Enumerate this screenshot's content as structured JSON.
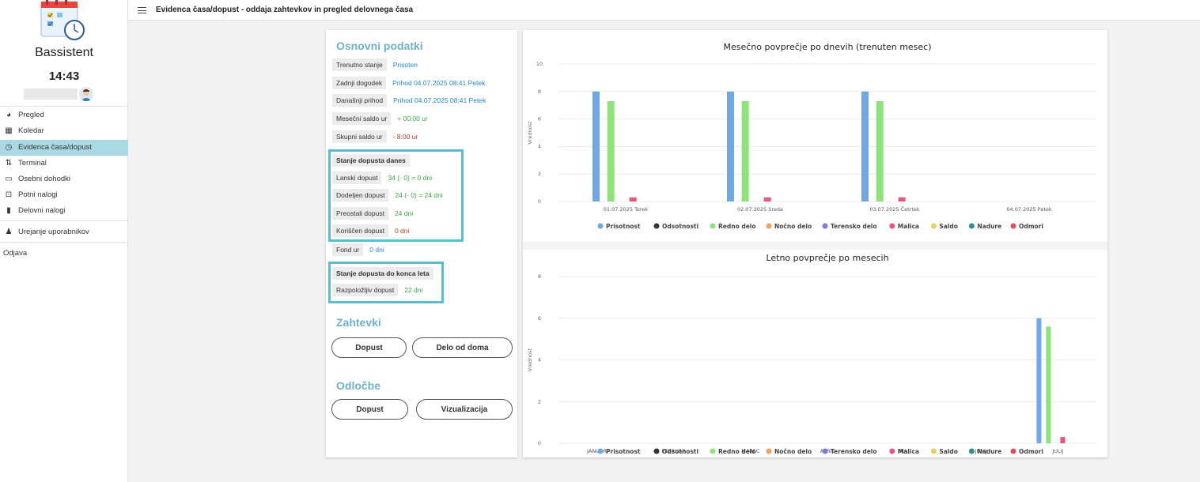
{
  "app": {
    "name": "Bassistent",
    "time": "14:43"
  },
  "sidebar": {
    "items": [
      {
        "label": "Pregled",
        "icon": "dashboard-icon"
      },
      {
        "label": "Koledar",
        "icon": "calendar-icon"
      },
      {
        "label": "Evidenca časa/dopust",
        "icon": "clock-icon",
        "active": true
      },
      {
        "label": "Terminal",
        "icon": "terminal-icon"
      },
      {
        "label": "Osebni dohodki",
        "icon": "money-icon"
      },
      {
        "label": "Potni nalogi",
        "icon": "car-icon"
      },
      {
        "label": "Delovni nalogi",
        "icon": "document-icon"
      },
      {
        "label": "Urejanje uporabnikov",
        "icon": "users-icon"
      }
    ],
    "logout": "Odjava"
  },
  "header": {
    "title": "Evidenca časa/dopust - oddaja zahtevkov in pregled delovnega časa"
  },
  "basic": {
    "title": "Osnovni podatki",
    "rows": [
      {
        "label": "Trenutno stanje",
        "value": "Prisoten"
      },
      {
        "label": "Zadnji dogodek",
        "value": "Prihod 04.07.2025 08:41 Petek"
      },
      {
        "label": "Današnji prihod",
        "value": "Prihod 04.07.2025 08:41 Petek"
      },
      {
        "label": "Mesečni saldo ur",
        "value": "+ 00:00 ur"
      },
      {
        "label": "Skupni saldo ur",
        "value": "- 8:00 ur"
      }
    ]
  },
  "leave_today": {
    "title": "Stanje dopusta danes",
    "rows": [
      {
        "label": "Lanski dopust",
        "value": "34 (- 0) = 0 dni"
      },
      {
        "label": "Dodeljen dopust",
        "value": "24 (- 0) = 24 dni"
      },
      {
        "label": "Preostali dopust",
        "value": "24 dni"
      },
      {
        "label": "Koriščen dopust",
        "value": "0 dni"
      }
    ]
  },
  "fund": {
    "label": "Fond ur",
    "value": "0 dni"
  },
  "leave_year": {
    "title": "Stanje dopusta do konca leta",
    "row": {
      "label": "Razpoložljiv dopust",
      "value": "22 dni"
    }
  },
  "requests": {
    "title": "Zahtevki",
    "buttons": [
      "Dopust",
      "Delo od doma"
    ]
  },
  "decisions": {
    "title": "Odločbe",
    "buttons": [
      "Dopust",
      "Vizualizacija"
    ]
  },
  "legend": [
    {
      "name": "Prisotnost",
      "color": "#6ea8e6"
    },
    {
      "name": "Odsotnosti",
      "color": "#333333"
    },
    {
      "name": "Redno delo",
      "color": "#8ee27a"
    },
    {
      "name": "Nočno delo",
      "color": "#f2a25c"
    },
    {
      "name": "Terensko delo",
      "color": "#7b7be8"
    },
    {
      "name": "Malica",
      "color": "#e8567e"
    },
    {
      "name": "Saldo",
      "color": "#e8d05a"
    },
    {
      "name": "Nadure",
      "color": "#2f8f8f"
    },
    {
      "name": "Odmori",
      "color": "#e0505a"
    }
  ],
  "chart_data": [
    {
      "type": "bar",
      "title": "Mesečno povprečje po dnevih (trenuten mesec)",
      "ylabel": "Vrednost",
      "ylim": [
        0,
        10
      ],
      "yticks": [
        0,
        2,
        4,
        6,
        8,
        10
      ],
      "categories": [
        "01.07.2025 Torek",
        "02.07.2025 Sreda",
        "03.07.2025 Četrtek",
        "04.07.2025 Petek"
      ],
      "series": [
        {
          "name": "Prisotnost",
          "values": [
            8,
            8,
            8,
            0
          ]
        },
        {
          "name": "Odsotnosti",
          "values": [
            0,
            0,
            0,
            0
          ]
        },
        {
          "name": "Redno delo",
          "values": [
            7.3,
            7.3,
            7.3,
            0
          ]
        },
        {
          "name": "Nočno delo",
          "values": [
            0,
            0,
            0,
            0
          ]
        },
        {
          "name": "Terensko delo",
          "values": [
            0,
            0,
            0,
            0
          ]
        },
        {
          "name": "Malica",
          "values": [
            0.3,
            0.3,
            0.3,
            0
          ]
        },
        {
          "name": "Saldo",
          "values": [
            0,
            0,
            0,
            0
          ]
        },
        {
          "name": "Nadure",
          "values": [
            0,
            0,
            0,
            0
          ]
        },
        {
          "name": "Odmori",
          "values": [
            0,
            0,
            0,
            0
          ]
        }
      ]
    },
    {
      "type": "bar",
      "title": "Letno povprečje po mesecih",
      "ylabel": "Vrednost",
      "ylim": [
        0,
        8
      ],
      "yticks": [
        0,
        2,
        4,
        6,
        8
      ],
      "categories": [
        "JANUAR",
        "FEBRUAR",
        "MAREC",
        "APRIL",
        "MAJ",
        "JUNIJ",
        "JULIJ"
      ],
      "series": [
        {
          "name": "Prisotnost",
          "values": [
            0,
            0,
            0,
            0,
            0,
            0,
            6
          ]
        },
        {
          "name": "Odsotnosti",
          "values": [
            0,
            0,
            0,
            0,
            0,
            0,
            0
          ]
        },
        {
          "name": "Redno delo",
          "values": [
            0,
            0,
            0,
            0,
            0,
            0,
            5.6
          ]
        },
        {
          "name": "Nočno delo",
          "values": [
            0,
            0,
            0,
            0,
            0,
            0,
            0
          ]
        },
        {
          "name": "Terensko delo",
          "values": [
            0,
            0,
            0,
            0,
            0,
            0,
            0
          ]
        },
        {
          "name": "Malica",
          "values": [
            0,
            0,
            0,
            0,
            0,
            0,
            0.3
          ]
        },
        {
          "name": "Saldo",
          "values": [
            0,
            0,
            0,
            0,
            0,
            0,
            0
          ]
        },
        {
          "name": "Nadure",
          "values": [
            0,
            0,
            0,
            0,
            0,
            0,
            0
          ]
        },
        {
          "name": "Odmori",
          "values": [
            0,
            0,
            0,
            0,
            0,
            0,
            0
          ]
        }
      ]
    }
  ]
}
